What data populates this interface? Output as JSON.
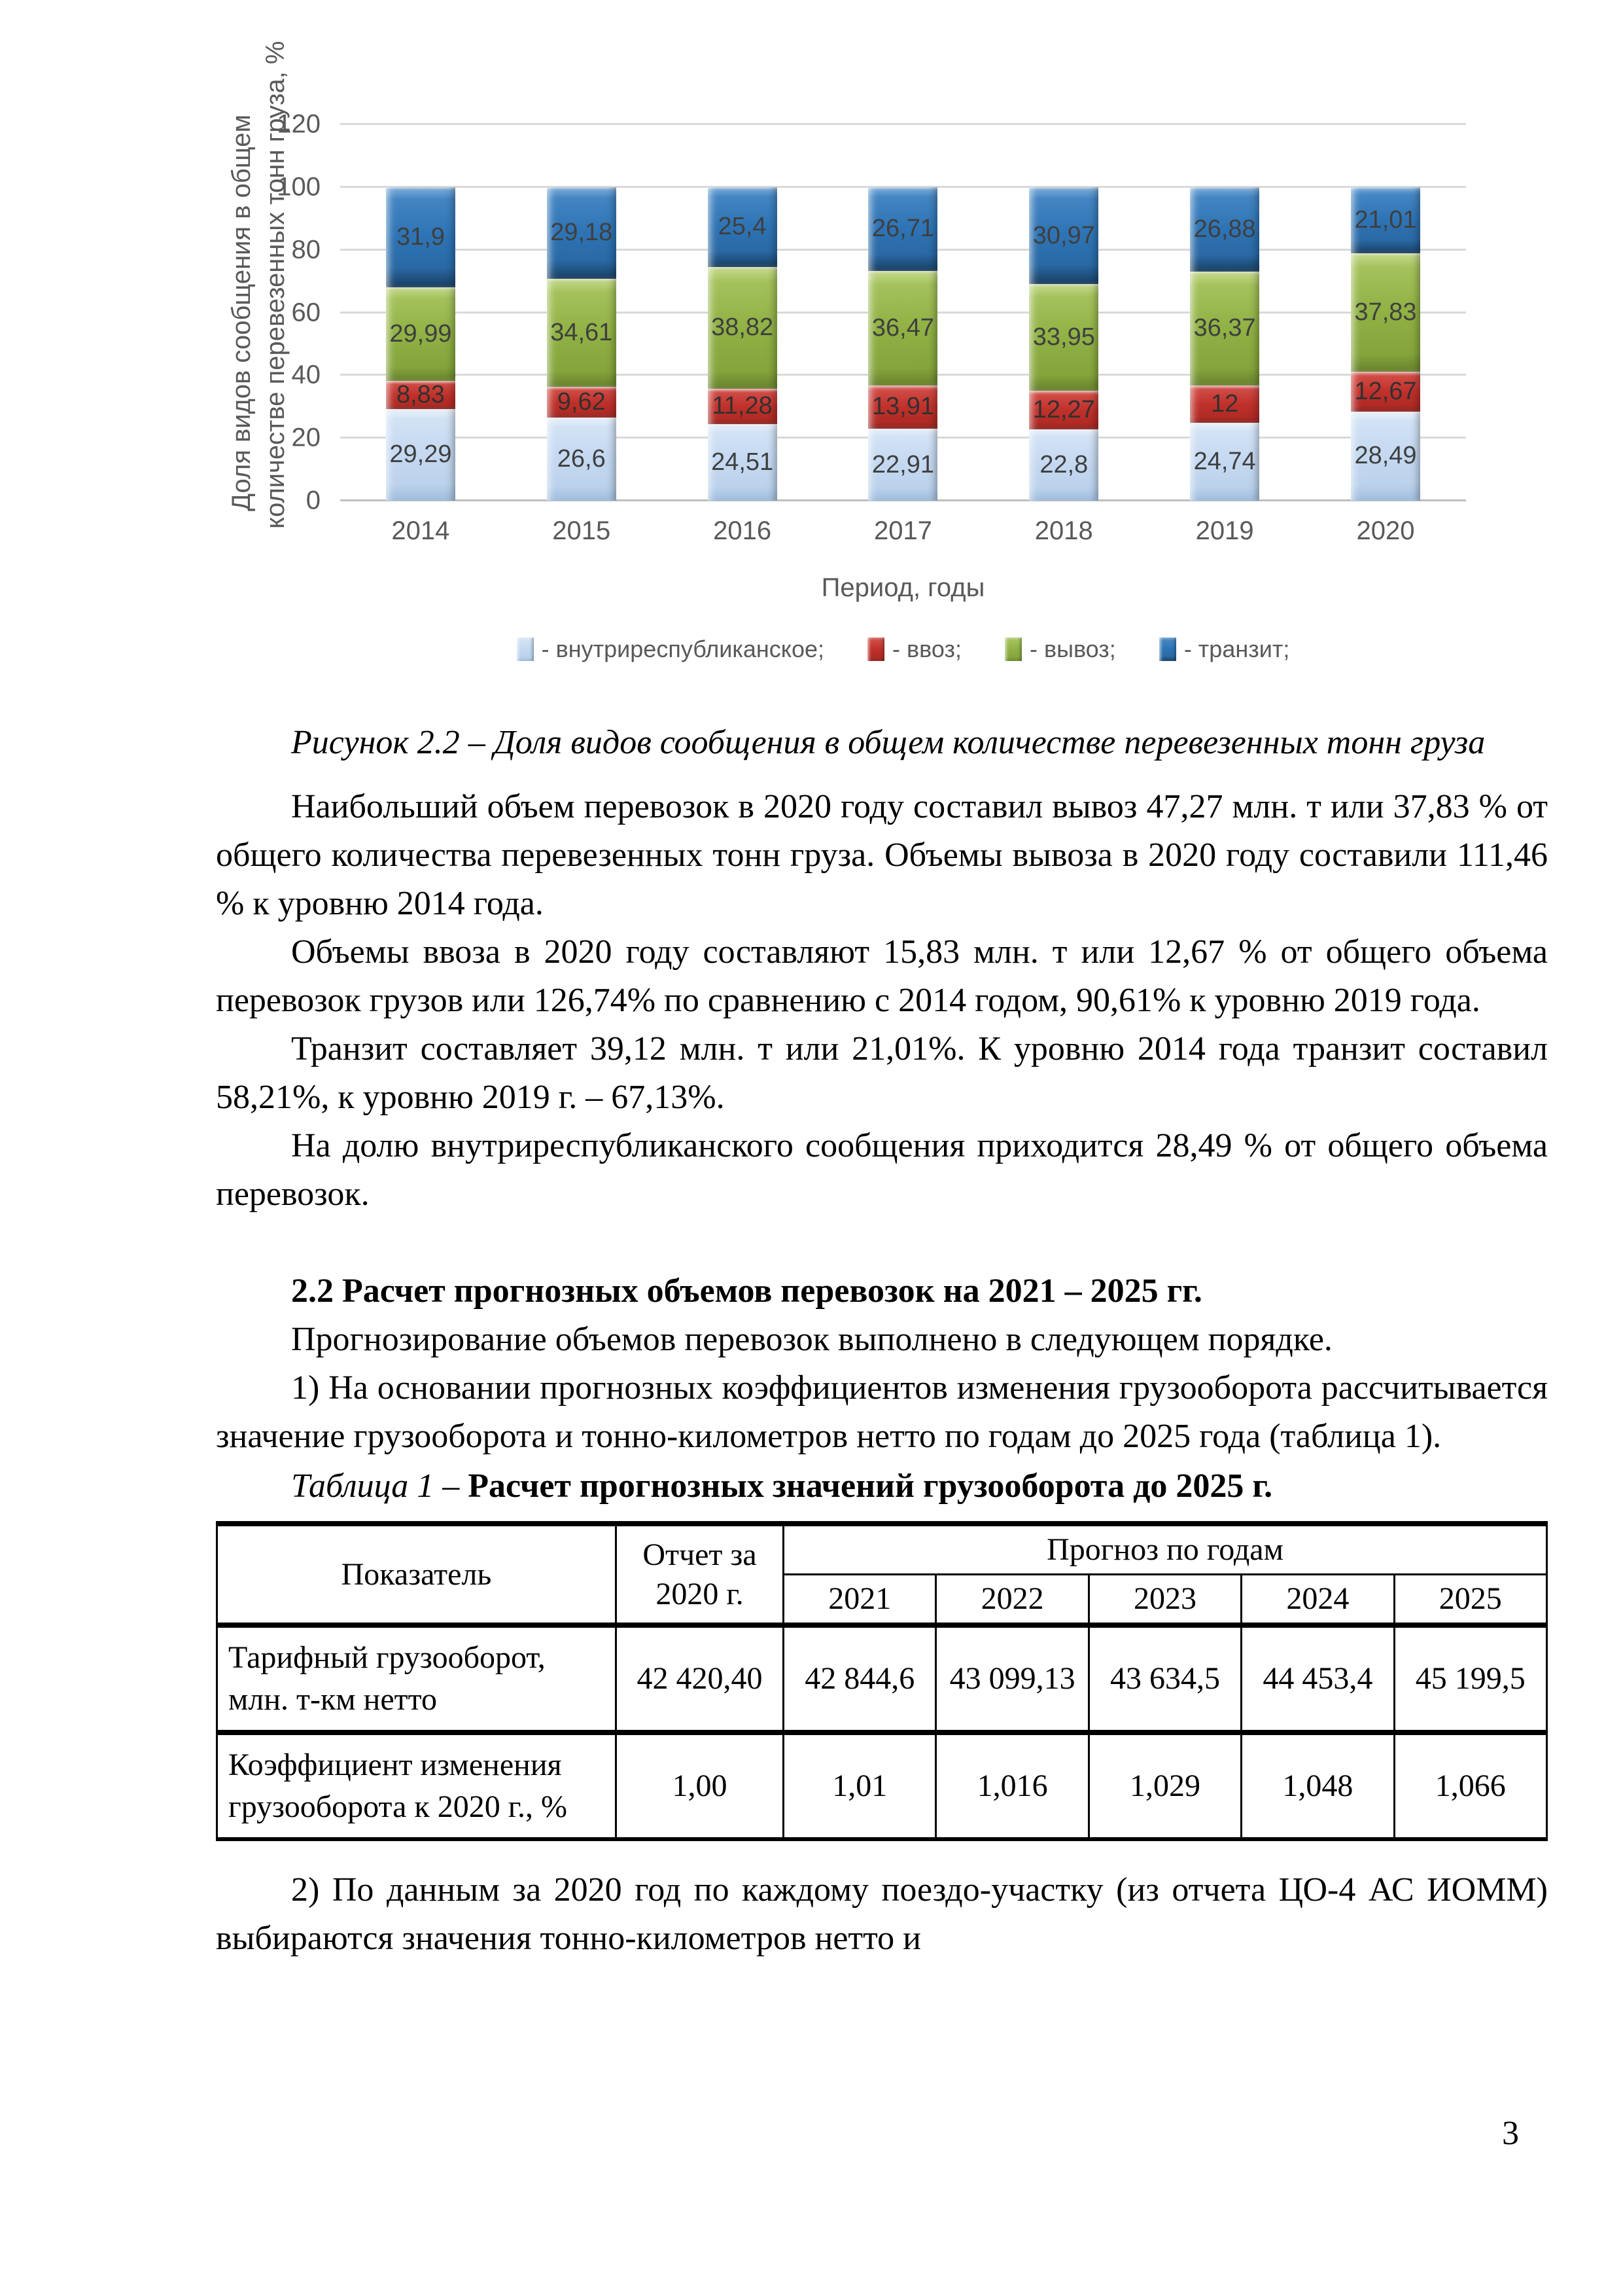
{
  "page": {
    "number": "3"
  },
  "chart_data": {
    "type": "bar",
    "stacked": true,
    "title": "",
    "xlabel": "Период, годы",
    "ylabel": "Доля видов сообщения в общем количестве перевезенных тонн груза, %",
    "ylabel_line1": "Доля видов сообщения в общем",
    "ylabel_line2": "количестве перевезенных тонн груза, %",
    "categories": [
      "2014",
      "2015",
      "2016",
      "2017",
      "2018",
      "2019",
      "2020"
    ],
    "series": [
      {
        "name": "внутриреспубликанское",
        "css": "seg-vnutri",
        "color": "#C5D9F1",
        "values": [
          29.29,
          26.6,
          24.51,
          22.91,
          22.8,
          24.74,
          28.49
        ],
        "labels": [
          "29,29",
          "26,6",
          "24,51",
          "22,91",
          "22,8",
          "24,74",
          "28,49"
        ]
      },
      {
        "name": "ввоз",
        "css": "seg-vvoz",
        "color": "#C0312B",
        "values": [
          8.83,
          9.62,
          11.28,
          13.91,
          12.27,
          12,
          12.67
        ],
        "labels": [
          "8,83",
          "9,62",
          "11,28",
          "13,91",
          "12,27",
          "12",
          "12,67"
        ]
      },
      {
        "name": "вывоз",
        "css": "seg-vyvoz",
        "color": "#90B144",
        "values": [
          29.99,
          34.61,
          38.82,
          36.47,
          33.95,
          36.37,
          37.83
        ],
        "labels": [
          "29,99",
          "34,61",
          "38,82",
          "36,47",
          "33,95",
          "36,37",
          "37,83"
        ]
      },
      {
        "name": "транзит",
        "css": "seg-tranzit",
        "color": "#2E74B5",
        "values": [
          31.9,
          29.18,
          25.4,
          26.71,
          30.97,
          26.88,
          21.01
        ],
        "labels": [
          "31,9",
          "29,18",
          "25,4",
          "26,71",
          "30,97",
          "26,88",
          "21,01"
        ]
      }
    ],
    "legend": [
      "- внутриреспубликанское;",
      "- ввоз;",
      "- вывоз;",
      "- транзит;"
    ],
    "legend_position": "bottom",
    "grid": true,
    "ylim": [
      0,
      120
    ],
    "yticks": [
      0,
      20,
      40,
      60,
      80,
      100,
      120
    ]
  },
  "figure": {
    "caption": "Рисунок 2.2 – Доля видов сообщения в общем количестве перевезенных тонн груза"
  },
  "paragraphs": {
    "p1": "Наибольший объем перевозок в 2020 году составил вывоз 47,27 млн. т или 37,83 % от общего количества перевезенных тонн груза. Объемы вывоза в 2020 году составили 111,46 % к уровню 2014 года.",
    "p2": "Объемы ввоза в 2020 году составляют 15,83 млн. т или 12,67 % от общего объема перевозок грузов или 126,74% по сравнению с 2014 годом, 90,61% к уровню 2019 года.",
    "p3": "Транзит составляет 39,12 млн. т или 21,01%. К уровню 2014 года транзит составил 58,21%, к уровню 2019 г. – 67,13%.",
    "p4": "На долю внутриреспубликанского сообщения приходится 28,49 % от общего объема перевозок.",
    "p5": "Прогнозирование объемов перевозок выполнено в следующем порядке.",
    "p6": "1) На основании прогнозных коэффициентов изменения грузооборота рассчитывается значение грузооборота и тонно-километров нетто по годам до 2025 года (таблица 1).",
    "p7": "2) По данным за 2020 год по каждому поездо-участку (из отчета ЦО-4 АС ИОММ) выбираются значения тонно-километров нетто и"
  },
  "section": {
    "heading": "2.2 Расчет прогнозных объемов перевозок на 2021 – 2025 гг."
  },
  "table": {
    "caption_italic": "Таблица 1 – ",
    "caption_bold": "Расчет прогнозных значений грузооборота до 2025 г.",
    "col1_header": "Показатель",
    "col2_header": "Отчет за 2020 г.",
    "group_header": "Прогноз по годам",
    "year_headers": [
      "2021",
      "2022",
      "2023",
      "2024",
      "2025"
    ],
    "rows": [
      {
        "label": "Тарифный грузооборот, млн. т-км нетто",
        "values": [
          "42 420,40",
          "42 844,6",
          "43 099,13",
          "43 634,5",
          "44 453,4",
          "45 199,5"
        ]
      },
      {
        "label": "Коэффициент изменения грузооборота к 2020 г., %",
        "values": [
          "1,00",
          "1,01",
          "1,016",
          "1,029",
          "1,048",
          "1,066"
        ]
      }
    ]
  }
}
